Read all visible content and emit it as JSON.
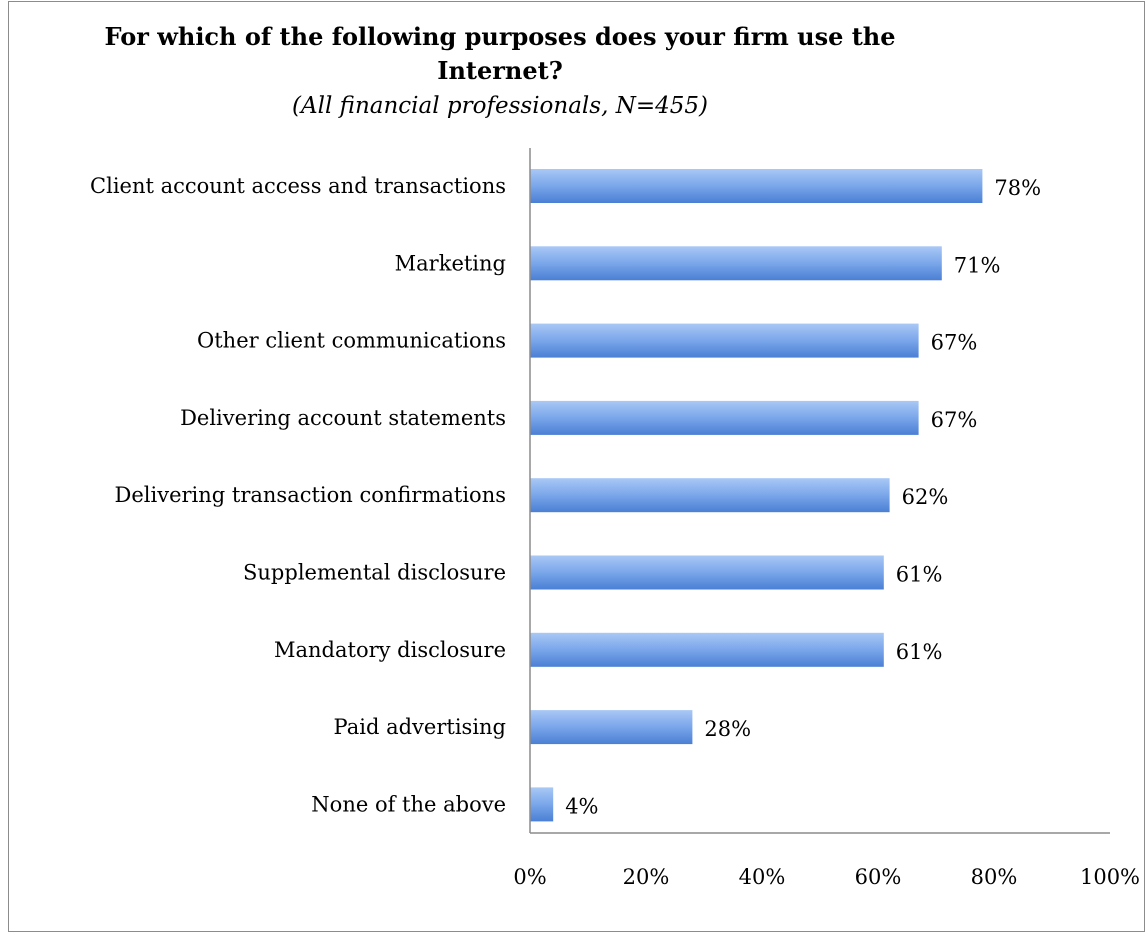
{
  "chart_data": {
    "type": "bar",
    "orientation": "horizontal",
    "title_line1": "For which of the following purposes does your firm use the",
    "title_line2": "Internet?",
    "subtitle": "(All financial professionals, N=455)",
    "xlabel": "",
    "ylabel": "",
    "xlim": [
      0,
      100
    ],
    "x_ticks": [
      "0%",
      "20%",
      "40%",
      "60%",
      "80%",
      "100%"
    ],
    "grid": false,
    "legend": "none",
    "bar_color": "#5b8fdc",
    "categories": [
      "Client account access and transactions",
      "Marketing",
      "Other client communications",
      "Delivering account statements",
      "Delivering transaction confirmations",
      "Supplemental disclosure",
      "Mandatory disclosure",
      "Paid advertising",
      "None of the above"
    ],
    "values": [
      78,
      71,
      67,
      67,
      62,
      61,
      61,
      28,
      4
    ],
    "data_labels": [
      "78%",
      "71%",
      "67%",
      "67%",
      "62%",
      "61%",
      "61%",
      "28%",
      "4%"
    ]
  }
}
